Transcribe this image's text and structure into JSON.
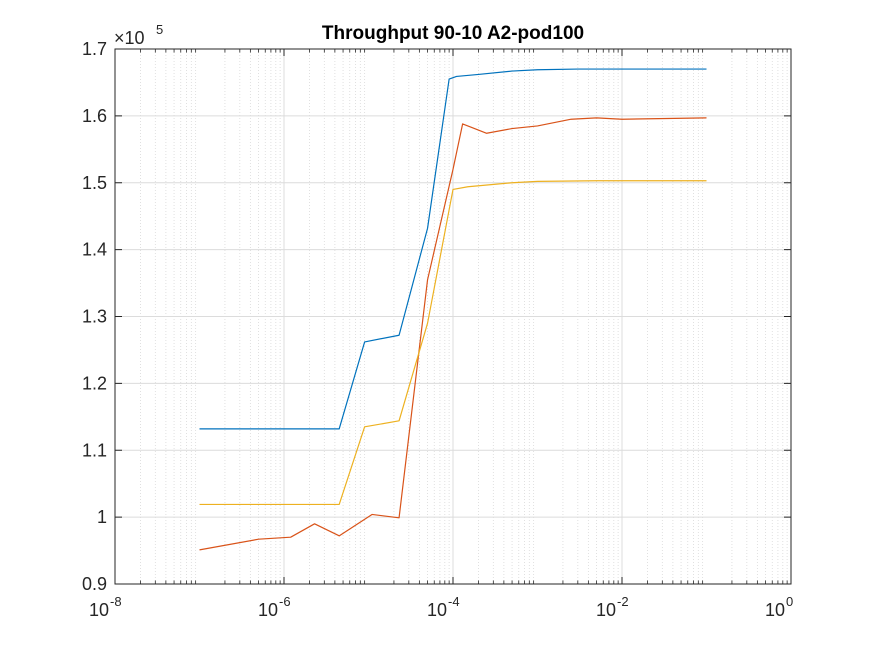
{
  "chart_data": {
    "type": "line",
    "title": "Throughput 90-10 A2-pod100",
    "xlabel": "",
    "ylabel": "",
    "xscale": "log",
    "xlim": [
      1e-08,
      1
    ],
    "ylim": [
      0.9,
      1.7
    ],
    "y_multiplier_label": "×10",
    "y_multiplier_exponent": "5",
    "grid": true,
    "minor_grid": true,
    "legend": "none",
    "x_tick_labels": [
      {
        "value": 1e-08,
        "base": "10",
        "exp": "-8"
      },
      {
        "value": 1e-06,
        "base": "10",
        "exp": "-6"
      },
      {
        "value": 0.0001,
        "base": "10",
        "exp": "-4"
      },
      {
        "value": 0.01,
        "base": "10",
        "exp": "-2"
      },
      {
        "value": 1,
        "base": "10",
        "exp": "0"
      }
    ],
    "y_ticks": [
      0.9,
      1.0,
      1.1,
      1.2,
      1.3,
      1.4,
      1.5,
      1.6,
      1.7
    ],
    "y_tick_labels": [
      "0.9",
      "1",
      "1.1",
      "1.2",
      "1.3",
      "1.4",
      "1.5",
      "1.6",
      "1.7"
    ],
    "series": [
      {
        "color": "#0072BD",
        "x": [
          1e-07,
          4.5e-06,
          9e-06,
          2.3e-05,
          5e-05,
          9e-05,
          0.00011,
          0.0002,
          0.0005,
          0.001,
          0.003,
          0.01,
          0.1
        ],
        "y": [
          1.132,
          1.132,
          1.262,
          1.272,
          1.432,
          1.655,
          1.659,
          1.662,
          1.667,
          1.669,
          1.67,
          1.67,
          1.67
        ]
      },
      {
        "color": "#D95319",
        "x": [
          1e-07,
          5e-07,
          1.2e-06,
          2.3e-06,
          4.5e-06,
          1.1e-05,
          2.3e-05,
          5e-05,
          0.0001,
          0.00013,
          0.00025,
          0.0005,
          0.001,
          0.0025,
          0.005,
          0.01,
          0.1
        ],
        "y": [
          0.951,
          0.967,
          0.97,
          0.99,
          0.972,
          1.004,
          0.999,
          1.355,
          1.52,
          1.588,
          1.574,
          1.581,
          1.585,
          1.595,
          1.597,
          1.595,
          1.597
        ]
      },
      {
        "color": "#EDB120",
        "x": [
          1e-07,
          4.5e-06,
          9e-06,
          2.3e-05,
          5e-05,
          0.0001,
          0.00015,
          0.0005,
          0.001,
          0.005,
          0.01,
          0.1
        ],
        "y": [
          1.019,
          1.019,
          1.135,
          1.144,
          1.29,
          1.49,
          1.494,
          1.5,
          1.502,
          1.503,
          1.503,
          1.503
        ]
      }
    ]
  }
}
